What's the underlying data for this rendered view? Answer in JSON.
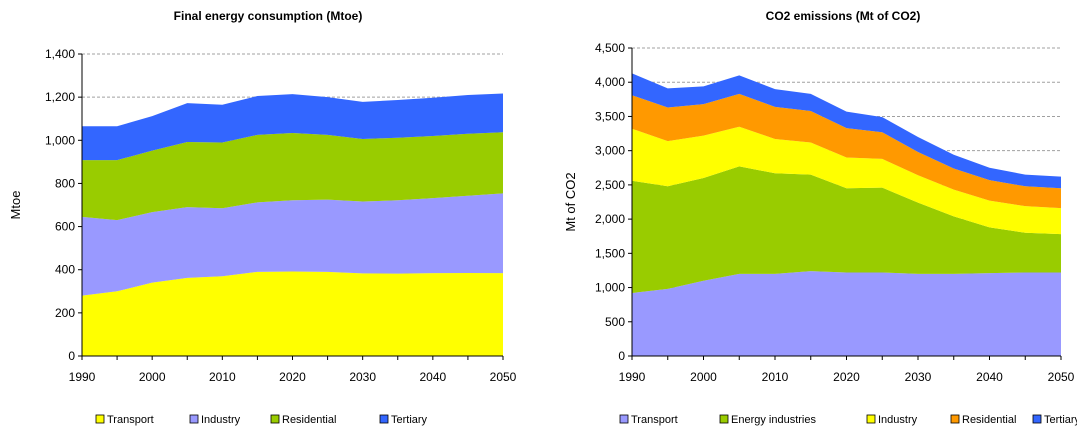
{
  "chart_data": [
    {
      "type": "area",
      "stacked": true,
      "title": "Final energy consumption (Mtoe)",
      "xlabel": "",
      "ylabel": "Mtoe",
      "x": [
        1990,
        1995,
        2000,
        2005,
        2010,
        2015,
        2020,
        2025,
        2030,
        2035,
        2040,
        2045,
        2050
      ],
      "xticks": [
        "1990",
        "2000",
        "2010",
        "2020",
        "2030",
        "2040",
        "2050"
      ],
      "xlim": [
        1990,
        2050
      ],
      "ylim": [
        0,
        1400
      ],
      "yticks": [
        "0",
        "200",
        "400",
        "600",
        "800",
        "1,000",
        "1,200",
        "1,400"
      ],
      "grid": "horizontal dashed",
      "legend_position": "bottom",
      "series": [
        {
          "name": "Transport",
          "color": "#ffff00",
          "values": [
            280,
            300,
            340,
            362,
            370,
            390,
            392,
            390,
            383,
            382,
            384,
            385,
            384
          ]
        },
        {
          "name": "Industry",
          "color": "#9999ff",
          "values": [
            365,
            330,
            327,
            328,
            315,
            322,
            330,
            335,
            333,
            340,
            348,
            358,
            370
          ]
        },
        {
          "name": "Residential",
          "color": "#99cc00",
          "values": [
            263,
            278,
            285,
            302,
            305,
            313,
            312,
            300,
            290,
            290,
            288,
            287,
            283
          ]
        },
        {
          "name": "Tertiary",
          "color": "#3366ff",
          "values": [
            157,
            157,
            160,
            180,
            175,
            180,
            180,
            175,
            172,
            175,
            177,
            180,
            180
          ]
        }
      ]
    },
    {
      "type": "area",
      "stacked": true,
      "title": "CO2 emissions (Mt of CO2)",
      "xlabel": "",
      "ylabel": "Mt of CO2",
      "x": [
        1990,
        1995,
        2000,
        2005,
        2010,
        2015,
        2020,
        2025,
        2030,
        2035,
        2040,
        2045,
        2050
      ],
      "xticks": [
        "1990",
        "2000",
        "2010",
        "2020",
        "2030",
        "2040",
        "2050"
      ],
      "xlim": [
        1990,
        2050
      ],
      "ylim": [
        0,
        4500
      ],
      "yticks": [
        "0",
        "500",
        "1,000",
        "1,500",
        "2,000",
        "2,500",
        "3,000",
        "3,500",
        "4,000",
        "4,500"
      ],
      "grid": "horizontal dashed",
      "legend_position": "bottom",
      "series": [
        {
          "name": "Transport",
          "color": "#9999ff",
          "values": [
            920,
            980,
            1100,
            1200,
            1200,
            1240,
            1220,
            1220,
            1200,
            1200,
            1210,
            1220,
            1220
          ]
        },
        {
          "name": "Energy industries",
          "color": "#99cc00",
          "values": [
            1640,
            1500,
            1500,
            1570,
            1470,
            1410,
            1230,
            1240,
            1040,
            840,
            670,
            580,
            560
          ]
        },
        {
          "name": "Industry",
          "color": "#ffff00",
          "values": [
            760,
            660,
            620,
            580,
            500,
            470,
            450,
            420,
            400,
            390,
            390,
            390,
            380
          ]
        },
        {
          "name": "Residential",
          "color": "#ff9900",
          "values": [
            490,
            490,
            460,
            480,
            470,
            460,
            430,
            390,
            340,
            310,
            300,
            290,
            290
          ]
        },
        {
          "name": "Tertiary",
          "color": "#3366ff",
          "values": [
            320,
            280,
            260,
            270,
            260,
            250,
            240,
            220,
            220,
            200,
            180,
            170,
            170
          ]
        }
      ]
    }
  ]
}
